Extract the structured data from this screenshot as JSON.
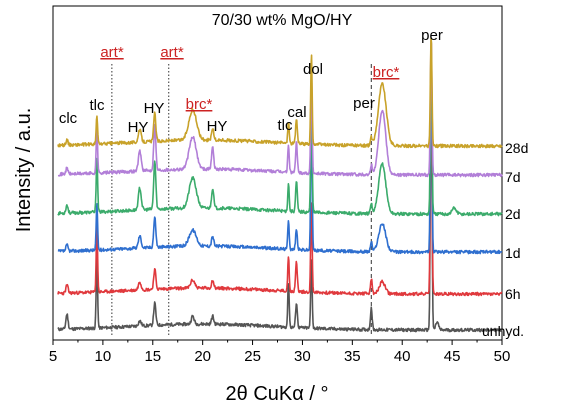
{
  "chart_data": {
    "type": "line",
    "title": "70/30 wt% MgO/HY",
    "xlabel": "2θ CuKα / °",
    "ylabel": "Intensity / a.u.",
    "xlim": [
      5,
      50
    ],
    "xticks": [
      "5",
      "10",
      "15",
      "20",
      "25",
      "30",
      "35",
      "40",
      "45",
      "50"
    ],
    "colors": {
      "unhyd.": "#555555",
      "6h": "#e0393d",
      "1d": "#2f6fcf",
      "2d": "#3bab6b",
      "7d": "#b27fd8",
      "28d": "#c8a22a",
      "marker_black": "#000000",
      "marker_red": "#cc2222"
    },
    "series": [
      {
        "name": "unhyd."
      },
      {
        "name": "6h"
      },
      {
        "name": "1d"
      },
      {
        "name": "2d"
      },
      {
        "name": "7d"
      },
      {
        "name": "28d"
      }
    ],
    "peak_annotations": [
      {
        "label": "clc",
        "two_theta": 6.4
      },
      {
        "label": "tlc",
        "two_theta": 9.4
      },
      {
        "label": "HY",
        "two_theta": 13.7
      },
      {
        "label": "HY",
        "two_theta": 15.2
      },
      {
        "label": "HY",
        "two_theta": 21.0
      },
      {
        "label": "tlc",
        "two_theta": 28.6
      },
      {
        "label": "cal",
        "two_theta": 29.4
      },
      {
        "label": "dol",
        "two_theta": 30.9
      },
      {
        "label": "per",
        "two_theta": 36.9
      },
      {
        "label": "per",
        "two_theta": 42.9
      }
    ],
    "phase_markers": [
      {
        "label": "art*",
        "two_theta": 10.9
      },
      {
        "label": "art*",
        "two_theta": 16.6
      },
      {
        "label": "brc*",
        "two_theta": 18.6
      },
      {
        "label": "brc*",
        "two_theta": 38.0
      }
    ]
  }
}
